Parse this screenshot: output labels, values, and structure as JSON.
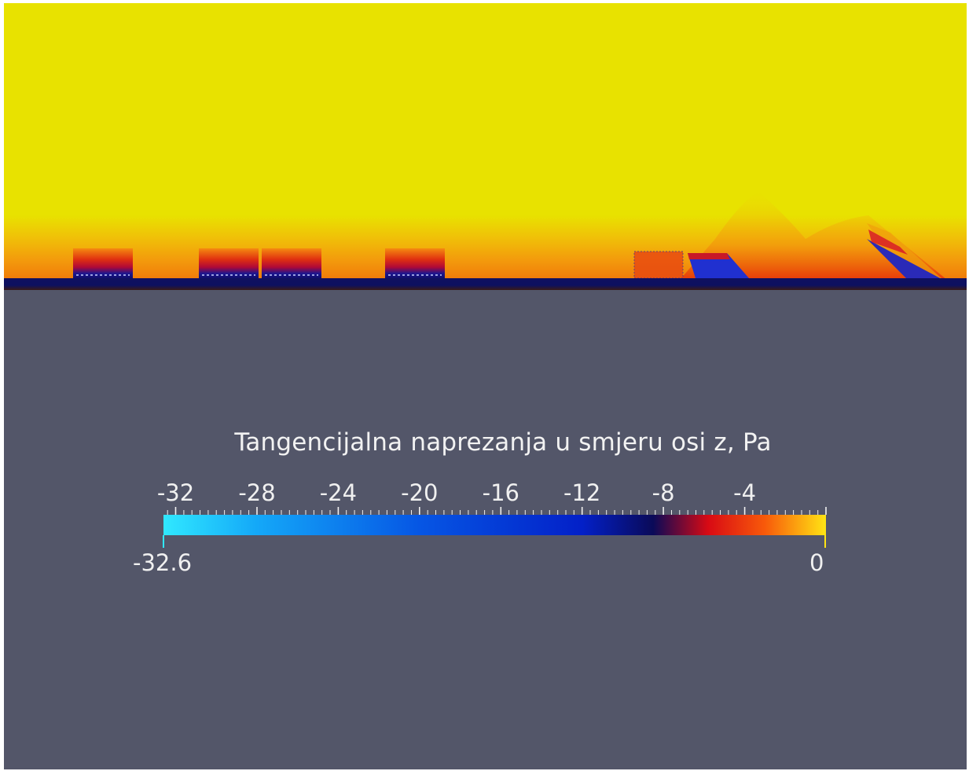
{
  "window": {
    "background": "#535669"
  },
  "field": {
    "colors": {
      "far_field": "#e8e200",
      "wall": "#0d1060",
      "layer_orange": "#f07c0a",
      "layer_red": "#d81c0a",
      "dark_blue": "#1a1aa0",
      "mid_blue": "#2838d8"
    },
    "bodies": 7
  },
  "scalar_bar": {
    "title": "Tangencijalna naprezanja u smjeru osi z, Pa",
    "range_min": -32.6,
    "range_max": 0,
    "range_min_label": "-32.6",
    "range_max_label": "0",
    "tick_values": [
      -32,
      -28,
      -24,
      -20,
      -16,
      -12,
      -8,
      -4
    ],
    "tick_labels": [
      "-32",
      "-28",
      "-24",
      "-20",
      "-16",
      "-12",
      "-8",
      "-4"
    ],
    "colormap_stops": [
      {
        "value": -32.6,
        "color": "#30e8ff"
      },
      {
        "value": -28,
        "color": "#14a8f8"
      },
      {
        "value": -20,
        "color": "#0656e4"
      },
      {
        "value": -12,
        "color": "#0320c8"
      },
      {
        "value": -8.5,
        "color": "#0a0a58"
      },
      {
        "value": -5.8,
        "color": "#d80a14"
      },
      {
        "value": -3.0,
        "color": "#f85a0a"
      },
      {
        "value": 0,
        "color": "#ffe414"
      }
    ]
  }
}
